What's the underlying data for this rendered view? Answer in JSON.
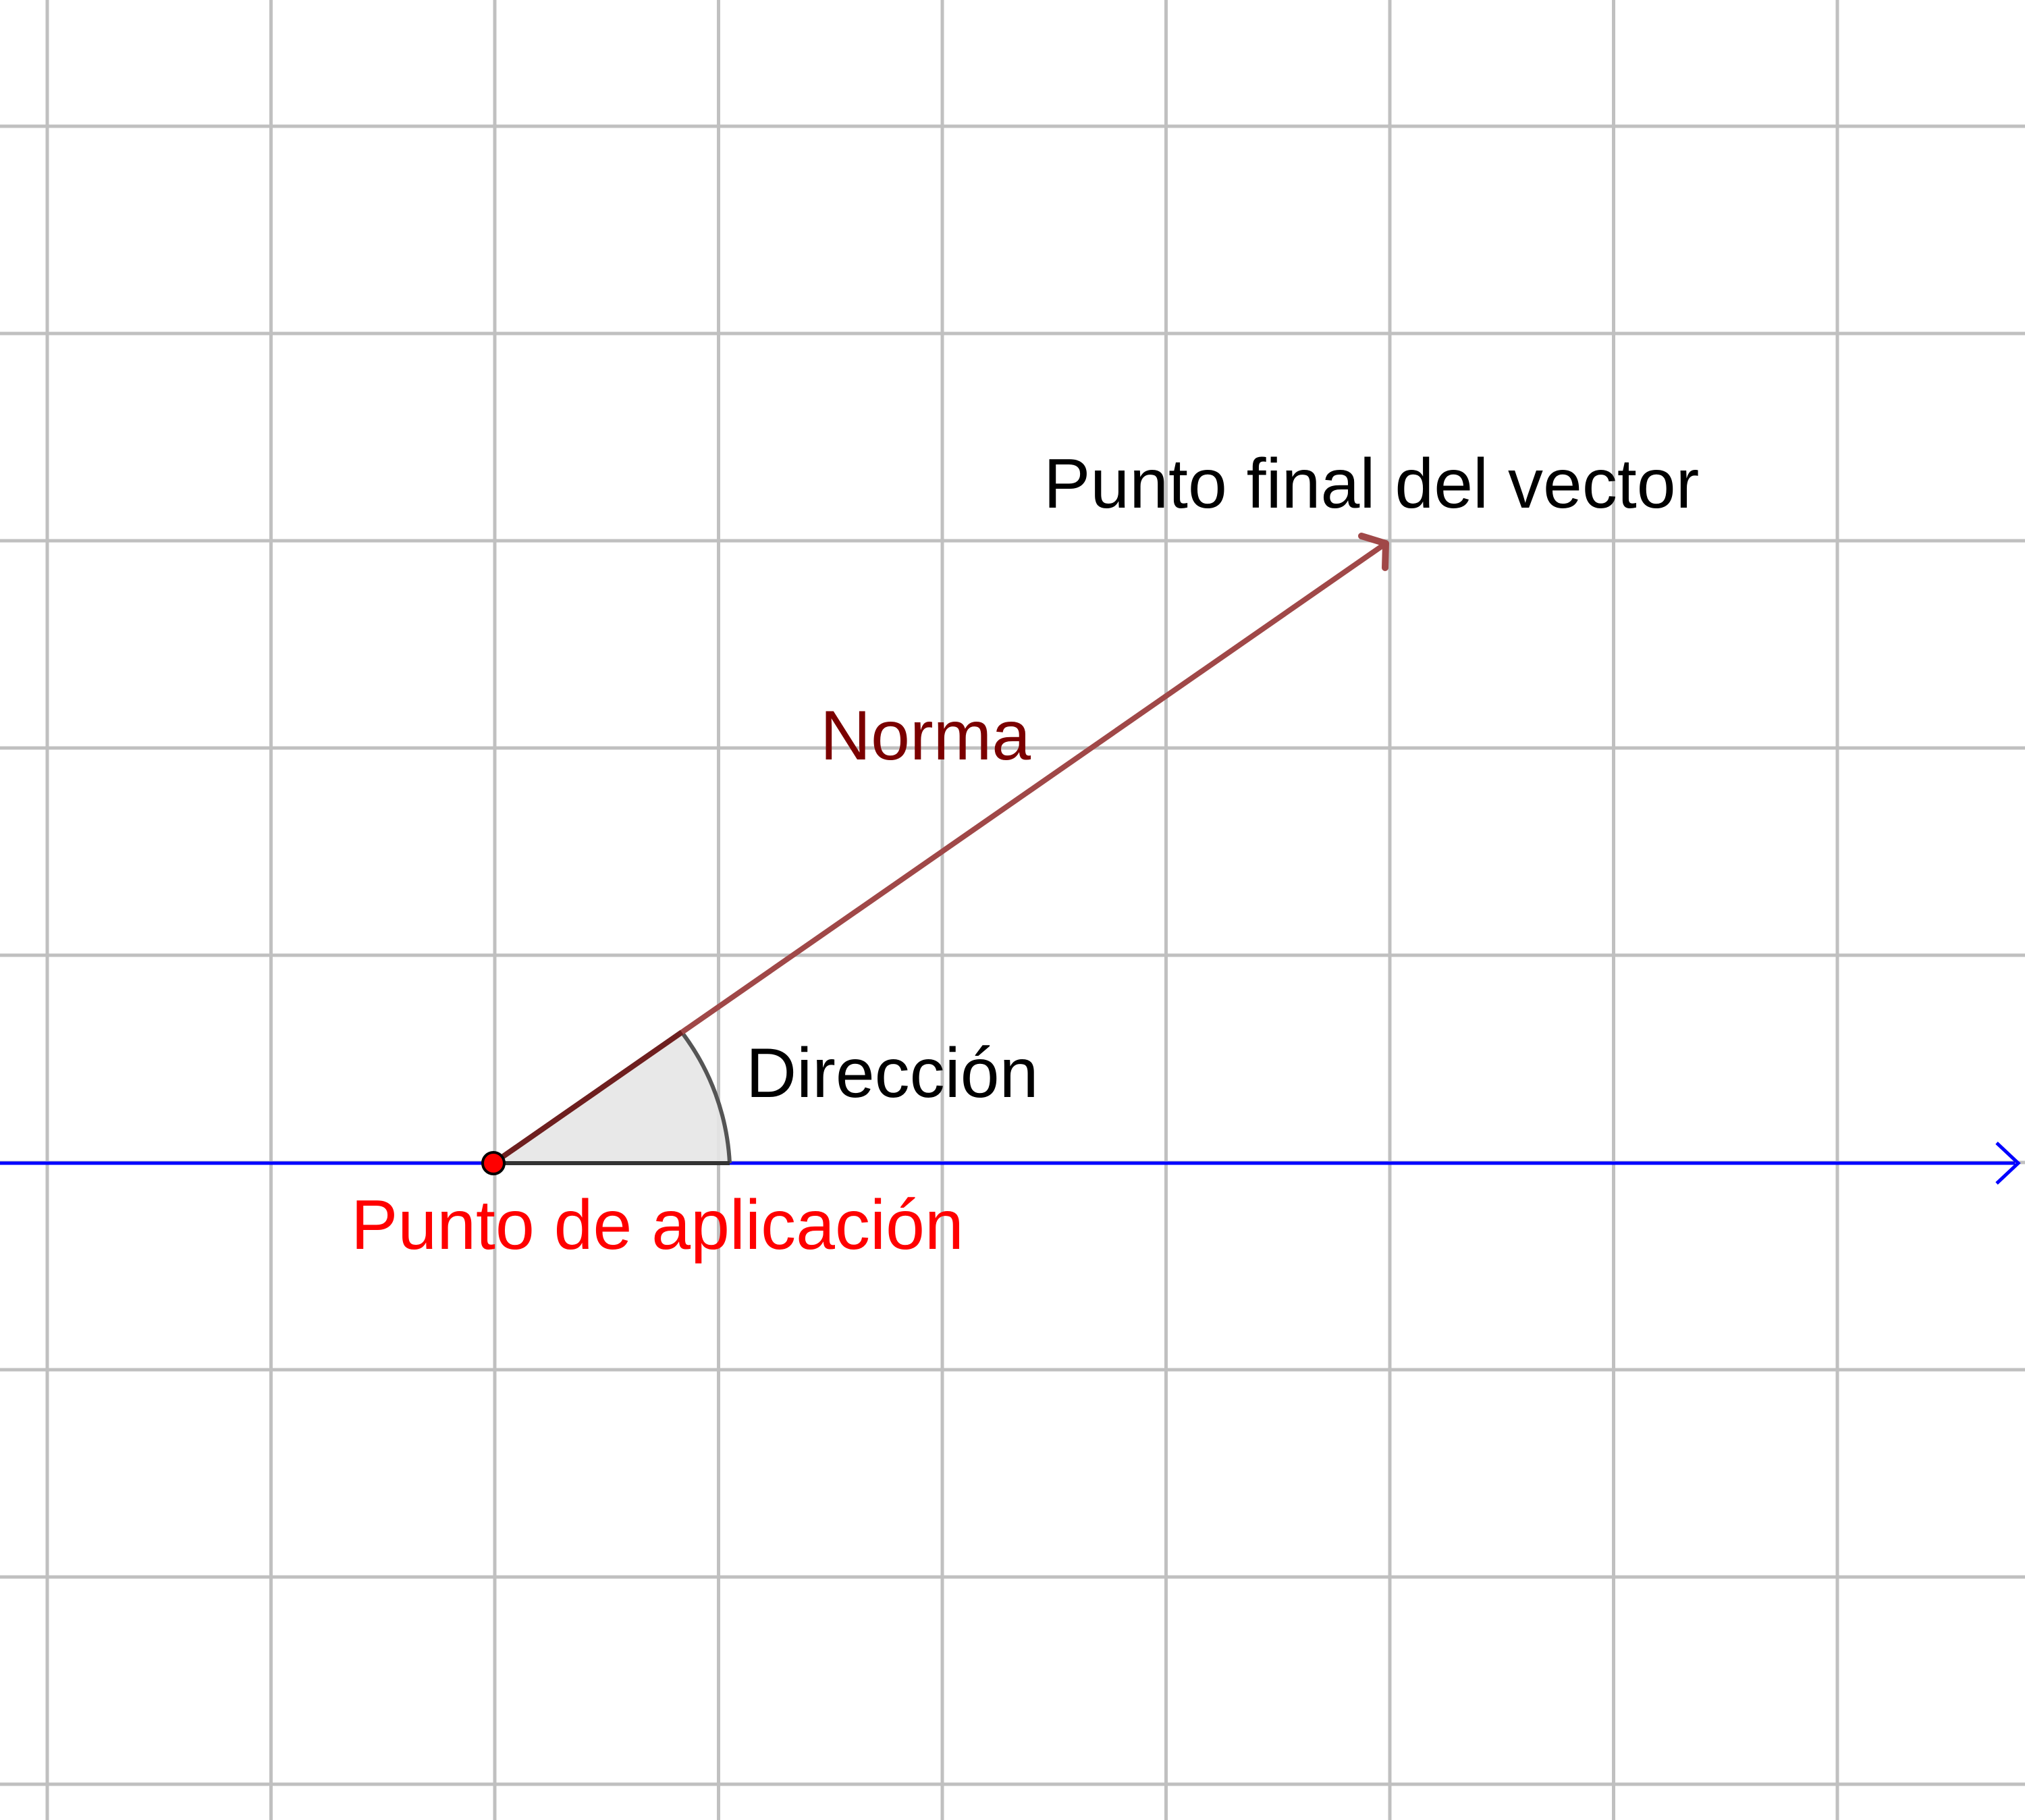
{
  "labels": {
    "end_point": "Punto final del vector",
    "norm": "Norma",
    "direction": "Dirección",
    "application_point": "Punto de aplicación"
  },
  "colors": {
    "grid": "#c0c0c0",
    "axis": "#0000ff",
    "vector": "#a04848",
    "norm_label": "#7b0000",
    "application_label": "#ff0000",
    "point_fill": "#ff0000",
    "angle_fill": "#e6e6e6",
    "angle_stroke": "#555555",
    "text": "#000000"
  }
}
